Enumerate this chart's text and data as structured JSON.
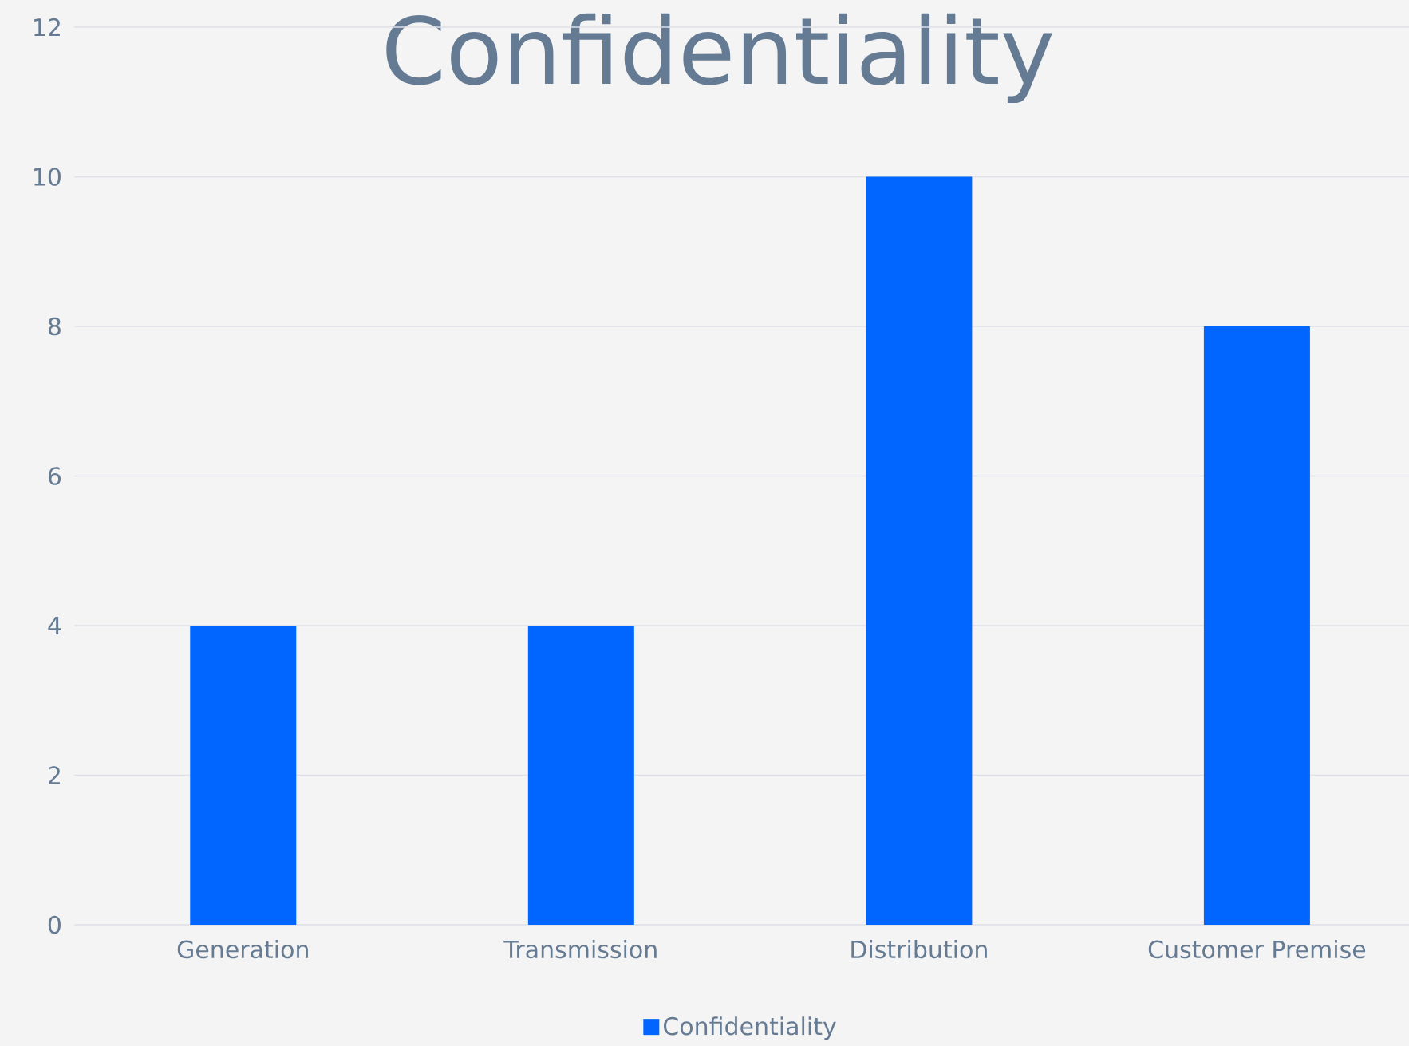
{
  "chart_data": {
    "type": "bar",
    "title": "Confidentiality",
    "categories": [
      "Generation",
      "Transmission",
      "Distribution",
      "Customer Premise"
    ],
    "series": [
      {
        "name": "Confidentiality",
        "color": "#0066ff",
        "values": [
          4,
          4,
          10,
          8
        ]
      }
    ],
    "ylim": [
      0,
      12
    ],
    "yticks": [
      0,
      2,
      4,
      6,
      8,
      10,
      12
    ],
    "grid": "y",
    "legend": "bottom"
  }
}
